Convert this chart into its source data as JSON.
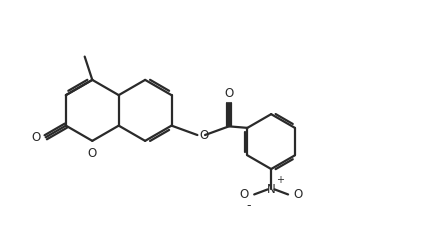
{
  "bg_color": "#ffffff",
  "line_color": "#2a2a2a",
  "line_width": 1.6,
  "figsize": [
    4.26,
    2.36
  ],
  "dpi": 100,
  "xlim": [
    0,
    10
  ],
  "ylim": [
    0,
    5.54
  ]
}
